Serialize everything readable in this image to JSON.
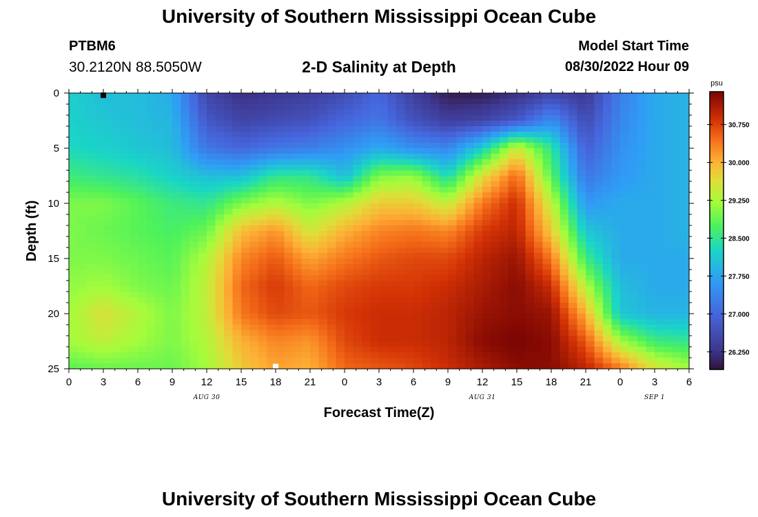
{
  "page": {
    "title": "University of Southern Mississippi Ocean Cube",
    "footer_title": "University of Southern Mississippi Ocean Cube",
    "station": "PTBM6",
    "coords": "30.2120N  88.5050W",
    "chart_title": "2-D Salinity at Depth",
    "model_label": "Model Start Time",
    "model_value": "08/30/2022 Hour 09"
  },
  "chart_data": {
    "type": "heatmap",
    "title": "2-D Salinity at Depth",
    "xlabel": "Forecast Time(Z)",
    "ylabel": "Depth (ft)",
    "x_ticks": [
      "0",
      "3",
      "6",
      "9",
      "12",
      "15",
      "18",
      "21",
      "0",
      "3",
      "6",
      "9",
      "12",
      "15",
      "18",
      "21",
      "0",
      "3",
      "6"
    ],
    "x_range_hours": [
      0,
      54
    ],
    "date_labels": [
      {
        "text": "AUG 30",
        "hour": 12
      },
      {
        "text": "AUG 31",
        "hour": 36
      },
      {
        "text": "SEP 1",
        "hour": 51
      }
    ],
    "y_ticks": [
      "0",
      "5",
      "10",
      "15",
      "20",
      "25"
    ],
    "ylim": [
      0,
      25
    ],
    "colorbar": {
      "unit": "psu",
      "min": 25.9,
      "max": 31.4,
      "tick_values": [
        30.75,
        30.0,
        29.25,
        28.5,
        27.75,
        27.0,
        26.25
      ],
      "tick_labels": [
        "30.750",
        "30.000",
        "29.250",
        "28.500",
        "27.750",
        "27.000",
        "26.250"
      ]
    },
    "markers": [
      {
        "hour": 3,
        "depth_ft": 0.2,
        "color": "#000000"
      },
      {
        "hour": 18,
        "depth_ft": 24.8,
        "color": "#ffffff"
      }
    ],
    "grid_x_hours": [
      0,
      3,
      6,
      9,
      12,
      15,
      18,
      21,
      24,
      27,
      30,
      33,
      36,
      39,
      42,
      45,
      48,
      51,
      54
    ],
    "grid_y_ft": [
      0,
      2.5,
      5,
      7.5,
      10,
      12.5,
      15,
      17.5,
      20,
      22.5,
      25
    ],
    "salinity_psu": [
      [
        28.2,
        28.0,
        28.0,
        27.8,
        26.5,
        26.2,
        26.3,
        26.4,
        26.6,
        27.0,
        26.4,
        26.0,
        26.0,
        26.2,
        26.5,
        26.3,
        27.3,
        27.8,
        27.9
      ],
      [
        28.2,
        28.1,
        28.0,
        27.9,
        26.8,
        26.5,
        26.6,
        26.7,
        27.0,
        27.2,
        26.7,
        26.4,
        26.5,
        26.8,
        27.5,
        26.6,
        27.4,
        27.8,
        27.9
      ],
      [
        28.3,
        28.2,
        28.1,
        28.0,
        27.2,
        27.0,
        27.2,
        27.3,
        27.5,
        27.8,
        27.5,
        27.4,
        28.2,
        29.5,
        28.5,
        26.9,
        27.5,
        27.8,
        27.9
      ],
      [
        28.6,
        28.5,
        28.4,
        28.2,
        28.0,
        28.0,
        28.5,
        28.5,
        28.0,
        29.0,
        29.1,
        28.3,
        29.6,
        30.5,
        28.8,
        27.2,
        27.6,
        27.8,
        27.9
      ],
      [
        29.0,
        29.0,
        28.8,
        28.6,
        28.5,
        29.0,
        29.3,
        29.0,
        29.3,
        29.8,
        29.8,
        29.4,
        30.4,
        30.9,
        29.4,
        27.6,
        27.8,
        27.8,
        27.9
      ],
      [
        29.0,
        28.9,
        28.8,
        28.7,
        28.9,
        29.9,
        30.2,
        29.5,
        30.0,
        30.3,
        30.4,
        30.3,
        30.8,
        31.0,
        29.8,
        28.1,
        27.8,
        27.8,
        27.9
      ],
      [
        29.0,
        29.0,
        28.9,
        28.8,
        29.3,
        30.3,
        30.6,
        30.1,
        30.4,
        30.6,
        30.7,
        30.7,
        31.0,
        31.2,
        30.4,
        28.6,
        27.8,
        27.8,
        27.8
      ],
      [
        29.1,
        29.2,
        29.0,
        28.9,
        29.4,
        30.5,
        30.8,
        30.5,
        30.7,
        30.8,
        30.8,
        30.9,
        31.1,
        31.3,
        30.9,
        29.3,
        28.0,
        27.8,
        27.8
      ],
      [
        29.2,
        29.6,
        29.3,
        29.0,
        29.4,
        30.4,
        30.7,
        30.6,
        30.8,
        30.9,
        30.9,
        31.0,
        31.2,
        31.3,
        31.2,
        30.0,
        28.1,
        27.9,
        27.9
      ],
      [
        29.2,
        29.4,
        29.2,
        29.0,
        29.3,
        30.0,
        30.3,
        30.2,
        30.7,
        30.9,
        30.9,
        31.0,
        31.3,
        31.4,
        31.3,
        30.6,
        29.2,
        28.6,
        28.5
      ],
      [
        28.8,
        28.9,
        28.9,
        28.9,
        29.2,
        29.8,
        30.1,
        30.0,
        30.5,
        30.6,
        30.7,
        30.9,
        31.1,
        31.3,
        31.3,
        31.0,
        30.4,
        29.6,
        29.2
      ]
    ]
  }
}
